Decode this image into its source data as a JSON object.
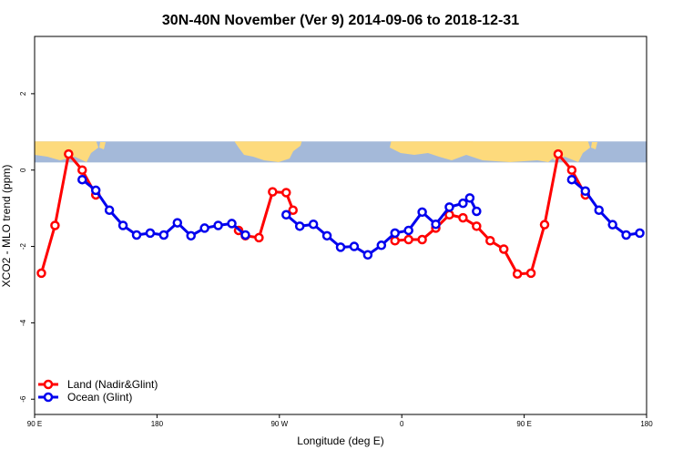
{
  "chart_data": {
    "type": "line",
    "title": "30N-40N November (Ver 9)   2014-09-06 to 2018-12-31",
    "xlabel": "Longitude (deg E)",
    "ylabel": "XCO2 - MLO trend (ppm)",
    "xlim": [
      90,
      540
    ],
    "ylim": [
      -6.4,
      3.5
    ],
    "x_ticks": [
      {
        "value": 90,
        "label": "90 E"
      },
      {
        "value": 180,
        "label": "180"
      },
      {
        "value": 270,
        "label": "90 W"
      },
      {
        "value": 360,
        "label": "0"
      },
      {
        "value": 450,
        "label": "90 E"
      },
      {
        "value": 540,
        "label": "180"
      }
    ],
    "y_ticks": [
      {
        "value": 2,
        "label": "2"
      },
      {
        "value": 0,
        "label": "0"
      },
      {
        "value": -2,
        "label": "-2"
      },
      {
        "value": -4,
        "label": "-4"
      },
      {
        "value": -6,
        "label": "-6"
      }
    ],
    "grid": false,
    "map_band": {
      "ymin": 0.2,
      "ymax": 0.75,
      "ocean_color": "#a4b9d9",
      "land_color": "#fdda7c"
    },
    "legend": {
      "placement": "bottom-left"
    },
    "series": [
      {
        "name": "Land (Nadir&Glint)",
        "color": "#ff0000",
        "segments": [
          [
            [
              95,
              -2.7
            ],
            [
              105,
              -1.45
            ],
            [
              115,
              0.42
            ],
            [
              125,
              0.0
            ],
            [
              135,
              -0.65
            ]
          ],
          [
            [
              240,
              -1.58
            ],
            [
              245,
              -1.72
            ],
            [
              255,
              -1.77
            ],
            [
              265,
              -0.57
            ],
            [
              275,
              -0.59
            ],
            [
              280,
              -1.05
            ]
          ],
          [
            [
              355,
              -1.85
            ],
            [
              365,
              -1.82
            ],
            [
              375,
              -1.82
            ],
            [
              385,
              -1.52
            ],
            [
              395,
              -1.17
            ],
            [
              405,
              -1.25
            ],
            [
              415,
              -1.47
            ],
            [
              425,
              -1.85
            ],
            [
              435,
              -2.07
            ],
            [
              445,
              -2.72
            ],
            [
              455,
              -2.7
            ],
            [
              465,
              -1.43
            ],
            [
              475,
              0.42
            ],
            [
              485,
              0.0
            ],
            [
              495,
              -0.65
            ]
          ]
        ]
      },
      {
        "name": "Ocean (Glint)",
        "color": "#0000ee",
        "segments": [
          [
            [
              125,
              -0.25
            ],
            [
              135,
              -0.53
            ],
            [
              145,
              -1.05
            ],
            [
              155,
              -1.45
            ],
            [
              165,
              -1.7
            ],
            [
              175,
              -1.65
            ],
            [
              185,
              -1.7
            ],
            [
              195,
              -1.38
            ],
            [
              205,
              -1.72
            ],
            [
              215,
              -1.52
            ],
            [
              225,
              -1.45
            ],
            [
              235,
              -1.4
            ],
            [
              245,
              -1.7
            ]
          ],
          [
            [
              275,
              -1.17
            ],
            [
              285,
              -1.47
            ],
            [
              295,
              -1.42
            ],
            [
              305,
              -1.72
            ],
            [
              315,
              -2.02
            ],
            [
              325,
              -2.0
            ],
            [
              335,
              -2.22
            ],
            [
              345,
              -1.97
            ],
            [
              355,
              -1.65
            ],
            [
              365,
              -1.58
            ],
            [
              375,
              -1.1
            ],
            [
              385,
              -1.42
            ],
            [
              395,
              -0.97
            ],
            [
              405,
              -0.87
            ],
            [
              410,
              -0.73
            ],
            [
              415,
              -1.08
            ]
          ],
          [
            [
              485,
              -0.25
            ],
            [
              495,
              -0.55
            ],
            [
              505,
              -1.05
            ],
            [
              515,
              -1.43
            ],
            [
              525,
              -1.7
            ],
            [
              535,
              -1.65
            ]
          ]
        ]
      }
    ]
  }
}
